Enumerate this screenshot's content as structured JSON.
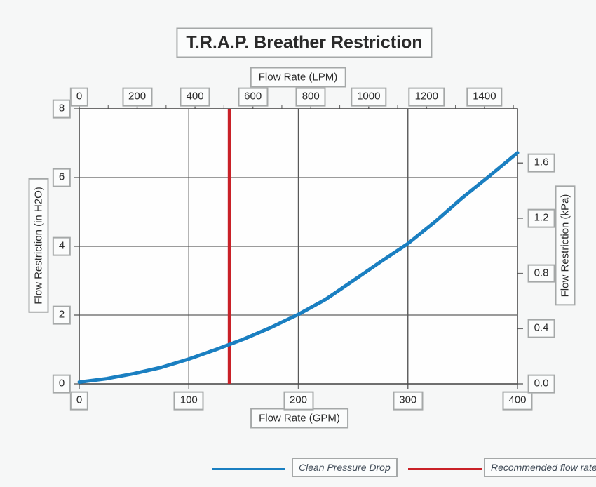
{
  "title": "T.R.A.P. Breather Restriction",
  "colors": {
    "background": "#f6f7f7",
    "plot_background": "#fefefe",
    "grid_horizontal": "#7a7a7a",
    "grid_vertical": "#595959",
    "frame": "#4c4c4c",
    "tick": "#6f6f6f",
    "box_border": "#a5a8a8",
    "box_fill": "#fbfcfc",
    "text": "#2a2a2a",
    "legend_text": "#414c58",
    "curve_blue": "#1a7fc1",
    "reference_red": "#c92128"
  },
  "chart_data": {
    "type": "line",
    "title": "T.R.A.P. Breather Restriction",
    "grid": true,
    "axes": {
      "top": {
        "label": "Flow Rate (LPM)",
        "lpm_per_gpm": 3.78541,
        "ticks": [
          {
            "label": "0",
            "value": 0
          },
          {
            "label": "200",
            "value": 200
          },
          {
            "label": "400",
            "value": 400
          },
          {
            "label": "600",
            "value": 600
          },
          {
            "label": "800",
            "value": 800
          },
          {
            "label": "1000",
            "value": 1000
          },
          {
            "label": "1200",
            "value": 1200
          },
          {
            "label": "1400",
            "value": 1400
          }
        ],
        "minor_tick_values": [
          100,
          300,
          500,
          700,
          900,
          1100,
          1300,
          1500
        ]
      },
      "bottom": {
        "label": "Flow Rate (GPM)",
        "min": 0,
        "max": 400,
        "ticks": [
          {
            "label": "0",
            "value": 0
          },
          {
            "label": "100",
            "value": 100
          },
          {
            "label": "200",
            "value": 200
          },
          {
            "label": "300",
            "value": 300
          },
          {
            "label": "400",
            "value": 400
          }
        ]
      },
      "left": {
        "label": "Flow Restriction (in H2O)",
        "min": 0,
        "max": 8,
        "ticks": [
          {
            "label": "0",
            "value": 0
          },
          {
            "label": "2",
            "value": 2
          },
          {
            "label": "4",
            "value": 4
          },
          {
            "label": "6",
            "value": 6
          },
          {
            "label": "8",
            "value": 8
          }
        ]
      },
      "right": {
        "label": "Flow Restriction (kPa)",
        "in_h2o_per_kpa": 4.0146,
        "ticks": [
          {
            "label": "0.0",
            "value": 0.0
          },
          {
            "label": "0.4",
            "value": 0.4
          },
          {
            "label": "0.8",
            "value": 0.8
          },
          {
            "label": "1.2",
            "value": 1.2
          },
          {
            "label": "1.6",
            "value": 1.6
          }
        ]
      }
    },
    "series": [
      {
        "name": "Clean Pressure Drop",
        "color": "#1a7fc1",
        "x_unit": "GPM",
        "y_unit": "in H2O",
        "points": [
          [
            0,
            0.05
          ],
          [
            25,
            0.15
          ],
          [
            50,
            0.3
          ],
          [
            75,
            0.48
          ],
          [
            100,
            0.72
          ],
          [
            125,
            1.0
          ],
          [
            150,
            1.3
          ],
          [
            175,
            1.64
          ],
          [
            200,
            2.02
          ],
          [
            225,
            2.46
          ],
          [
            250,
            3.0
          ],
          [
            275,
            3.55
          ],
          [
            300,
            4.08
          ],
          [
            325,
            4.72
          ],
          [
            350,
            5.42
          ],
          [
            375,
            6.06
          ],
          [
            400,
            6.72
          ]
        ]
      }
    ],
    "reference_lines": [
      {
        "name": "Recommended flow rate",
        "color": "#c92128",
        "x_gpm": 137
      }
    ]
  },
  "legend": {
    "items": [
      {
        "label": "Clean Pressure Drop",
        "color": "#1a7fc1"
      },
      {
        "label": "Recommended flow rate",
        "color": "#c92128"
      }
    ]
  }
}
